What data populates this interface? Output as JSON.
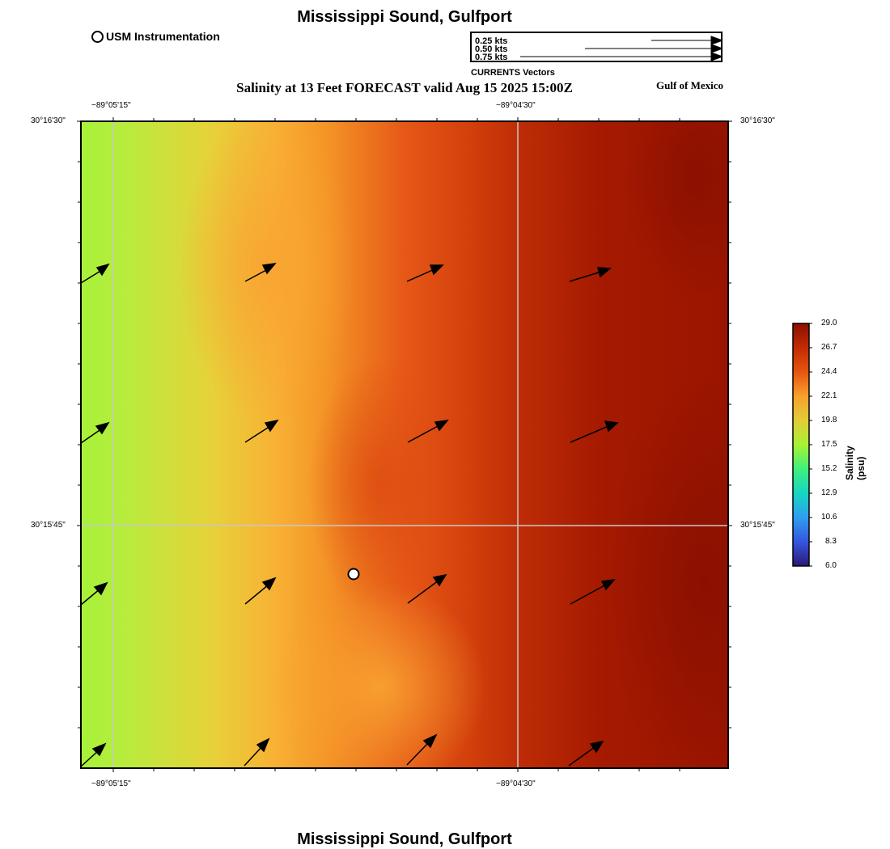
{
  "title": "Mississippi Sound, Gulfport",
  "footer_title": "Mississippi Sound, Gulfport",
  "station_legend": "USM Instrumentation",
  "subtitle": "Salinity at 13 Feet FORECAST valid Aug 15 2025 15:00Z",
  "region_label": "Gulf of Mexico",
  "vector_scale": {
    "caption": "CURRENTS Vectors",
    "entries": [
      "0.25 kts",
      "0.50 kts",
      "0.75 kts"
    ]
  },
  "axes": {
    "lon_ticks": [
      "−89°05'15\"",
      "−89°04'30\""
    ],
    "lat_ticks": [
      "30°16'30\"",
      "30°15'45\""
    ]
  },
  "colorbar": {
    "title": "Salinity (psu)",
    "ticks": [
      "29.0",
      "26.7",
      "24.4",
      "22.1",
      "19.8",
      "17.5",
      "15.2",
      "12.9",
      "10.6",
      "8.3",
      "6.0"
    ],
    "colors": [
      "#8b1000",
      "#c32a05",
      "#e5560f",
      "#f7a12e",
      "#e2cc36",
      "#a8f233",
      "#3ff07c",
      "#16d6c2",
      "#2f9ef0",
      "#3556de",
      "#2a1a78"
    ]
  },
  "station": {
    "name": "USM Instrumentation"
  },
  "colors": {
    "salinity_low": "#a9f23a",
    "salinity_mid": "#f9a835",
    "salinity_high": "#8a0f00"
  }
}
